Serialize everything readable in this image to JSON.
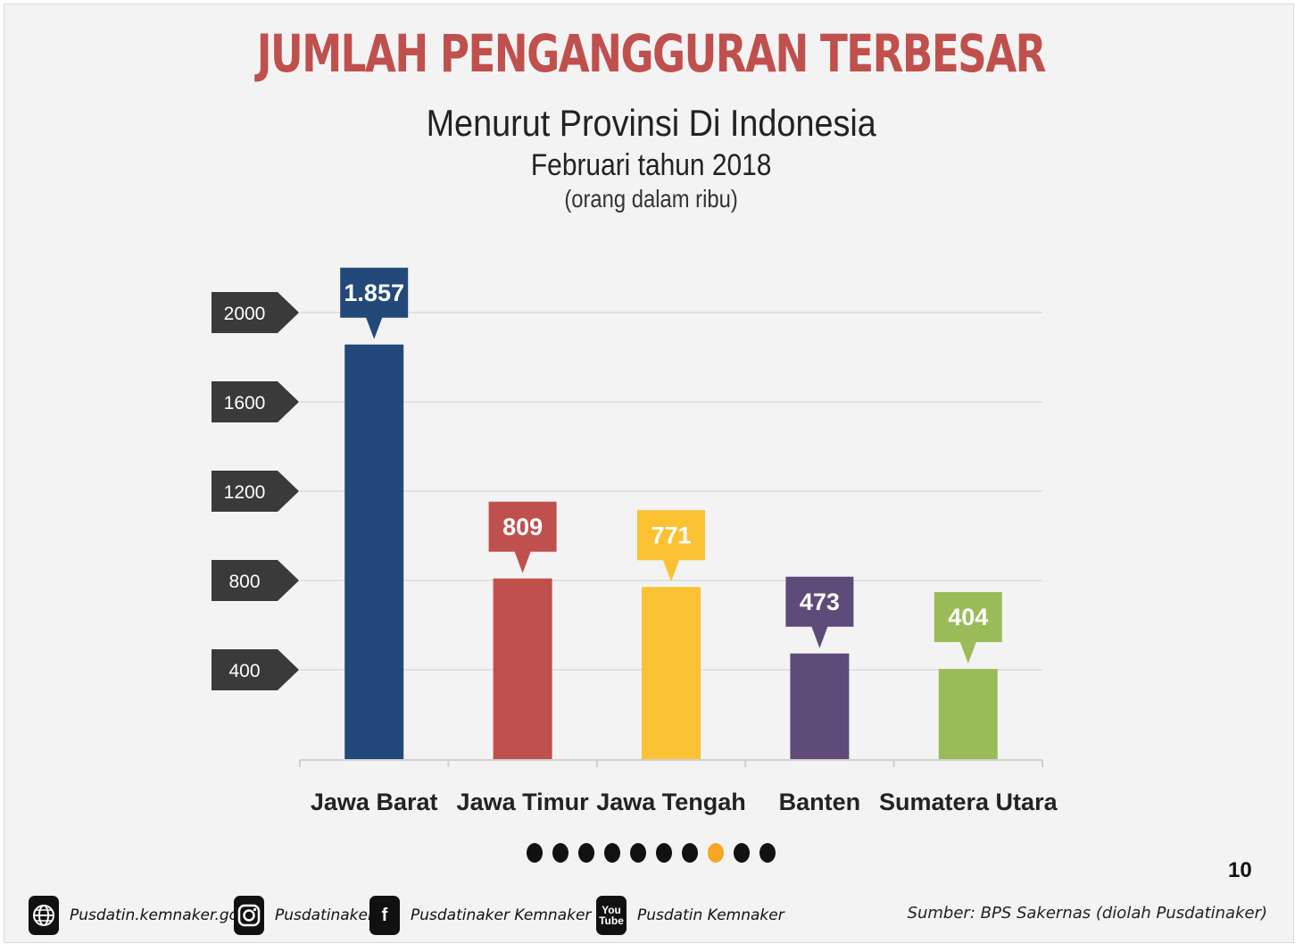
{
  "header": {
    "title": "JUMLAH PENGANGGURAN TERBESAR",
    "subtitle": "Menurut Provinsi Di Indonesia",
    "period": "Februari tahun 2018",
    "unit": "(orang dalam ribu)"
  },
  "chart_data": {
    "type": "bar",
    "title": "JUMLAH PENGANGGURAN TERBESAR",
    "subtitle": "Menurut Provinsi Di Indonesia Februari tahun 2018 (orang dalam ribu)",
    "categories": [
      "Jawa Barat",
      "Jawa Timur",
      "Jawa Tengah",
      "Banten",
      "Sumatera Utara"
    ],
    "values": [
      1857,
      809,
      771,
      473,
      404
    ],
    "value_labels": [
      "1.857",
      "809",
      "771",
      "473",
      "404"
    ],
    "colors": [
      "#23497a",
      "#c0504d",
      "#fac133",
      "#5f4b7a",
      "#9bbb59"
    ],
    "yticks": [
      400,
      800,
      1200,
      1600,
      2000
    ],
    "ylim": [
      0,
      2000
    ],
    "grid": true,
    "legend": "none"
  },
  "pager": {
    "count": 10,
    "active_index": 7,
    "page_number": "10"
  },
  "footer": {
    "items": [
      {
        "icon": "globe-icon",
        "text": "Pusdatin.kemnaker.go.id"
      },
      {
        "icon": "instagram-icon",
        "text": "Pusdatinaker"
      },
      {
        "icon": "facebook-icon",
        "text": "Pusdatinaker  Kemnaker RI"
      },
      {
        "icon": "youtube-icon",
        "text": "Pusdatin Kemnaker"
      }
    ],
    "source": "Sumber: BPS Sakernas (diolah Pusdatinaker)"
  },
  "colors": {
    "title": "#c0504d",
    "tick_box": "#3a3a3a",
    "gridline": "#dcdcdc",
    "active_dot": "#f5a623"
  }
}
